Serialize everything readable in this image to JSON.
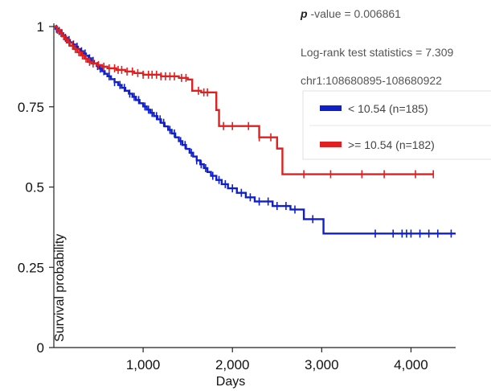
{
  "annotations": {
    "p_symbol": "p",
    "p_text": " -value = 0.006861",
    "logrank": "Log-rank test statistics = 7.309",
    "region": "chr1:108680895-108680922"
  },
  "chart_data": {
    "type": "line",
    "title": "",
    "xlabel": "Days",
    "ylabel": "Survival probability",
    "xlim": [
      0,
      4500
    ],
    "ylim": [
      0,
      1
    ],
    "x_ticks": [
      1000,
      2000,
      3000,
      4000
    ],
    "x_tick_labels": [
      "1,000",
      "2,000",
      "3,000",
      "4,000"
    ],
    "y_ticks": [
      0,
      0.25,
      0.5,
      0.75,
      1
    ],
    "y_tick_labels": [
      "0",
      "0.25",
      "0.5",
      "0.75",
      "1"
    ],
    "grid": false,
    "legend_position": "top-right",
    "series": [
      {
        "name": "< 10.54 (n=185)",
        "color": "#1020c8",
        "step_x": [
          0,
          20,
          45,
          70,
          95,
          120,
          150,
          180,
          210,
          240,
          270,
          300,
          330,
          360,
          390,
          420,
          450,
          480,
          510,
          540,
          570,
          600,
          640,
          680,
          720,
          760,
          800,
          840,
          880,
          920,
          960,
          1000,
          1040,
          1080,
          1120,
          1160,
          1200,
          1240,
          1280,
          1320,
          1360,
          1400,
          1440,
          1480,
          1520,
          1560,
          1600,
          1640,
          1680,
          1720,
          1760,
          1820,
          1880,
          1950,
          2050,
          2150,
          2250,
          2450,
          2650,
          2800,
          3020,
          4500
        ],
        "step_y": [
          1.0,
          0.993,
          0.986,
          0.979,
          0.972,
          0.965,
          0.958,
          0.951,
          0.944,
          0.937,
          0.93,
          0.923,
          0.916,
          0.909,
          0.901,
          0.893,
          0.885,
          0.877,
          0.869,
          0.861,
          0.853,
          0.845,
          0.836,
          0.827,
          0.818,
          0.809,
          0.8,
          0.791,
          0.781,
          0.771,
          0.761,
          0.751,
          0.741,
          0.731,
          0.721,
          0.711,
          0.7,
          0.689,
          0.678,
          0.667,
          0.655,
          0.643,
          0.631,
          0.619,
          0.607,
          0.595,
          0.583,
          0.571,
          0.559,
          0.547,
          0.535,
          0.522,
          0.509,
          0.496,
          0.482,
          0.468,
          0.455,
          0.441,
          0.43,
          0.4,
          0.355,
          0.355
        ],
        "censor_x": [
          30,
          60,
          90,
          130,
          170,
          220,
          260,
          310,
          350,
          400,
          440,
          490,
          520,
          560,
          620,
          680,
          740,
          790,
          850,
          900,
          950,
          1020,
          1060,
          1100,
          1150,
          1190,
          1230,
          1300,
          1350,
          1420,
          1470,
          1540,
          1600,
          1650,
          1700,
          1780,
          1850,
          1920,
          2000,
          2100,
          2200,
          2300,
          2400,
          2500,
          2600,
          2700,
          2900,
          3600,
          3800,
          3900,
          3950,
          4000,
          4100,
          4200,
          4300,
          4450
        ]
      },
      {
        "name": ">= 10.54 (n=182)",
        "color": "#e02020",
        "step_x": [
          0,
          30,
          60,
          90,
          120,
          150,
          180,
          220,
          260,
          300,
          340,
          380,
          420,
          480,
          540,
          600,
          700,
          800,
          900,
          1000,
          1200,
          1400,
          1500,
          1550,
          1650,
          1820,
          1850,
          2050,
          2300,
          2420,
          2500,
          2560,
          4250
        ],
        "step_y": [
          1.0,
          0.99,
          0.98,
          0.97,
          0.96,
          0.95,
          0.94,
          0.93,
          0.92,
          0.91,
          0.9,
          0.89,
          0.885,
          0.88,
          0.875,
          0.87,
          0.865,
          0.86,
          0.855,
          0.85,
          0.845,
          0.84,
          0.835,
          0.8,
          0.795,
          0.74,
          0.69,
          0.69,
          0.655,
          0.655,
          0.62,
          0.54,
          0.54
        ],
        "censor_x": [
          40,
          80,
          110,
          140,
          170,
          210,
          240,
          280,
          320,
          360,
          400,
          440,
          500,
          560,
          620,
          680,
          720,
          760,
          820,
          880,
          940,
          1000,
          1060,
          1100,
          1150,
          1200,
          1250,
          1300,
          1350,
          1430,
          1480,
          1620,
          1680,
          1720,
          1900,
          2000,
          2180,
          2300,
          2430,
          2800,
          3100,
          3450,
          3700,
          4050,
          4250
        ]
      }
    ]
  }
}
